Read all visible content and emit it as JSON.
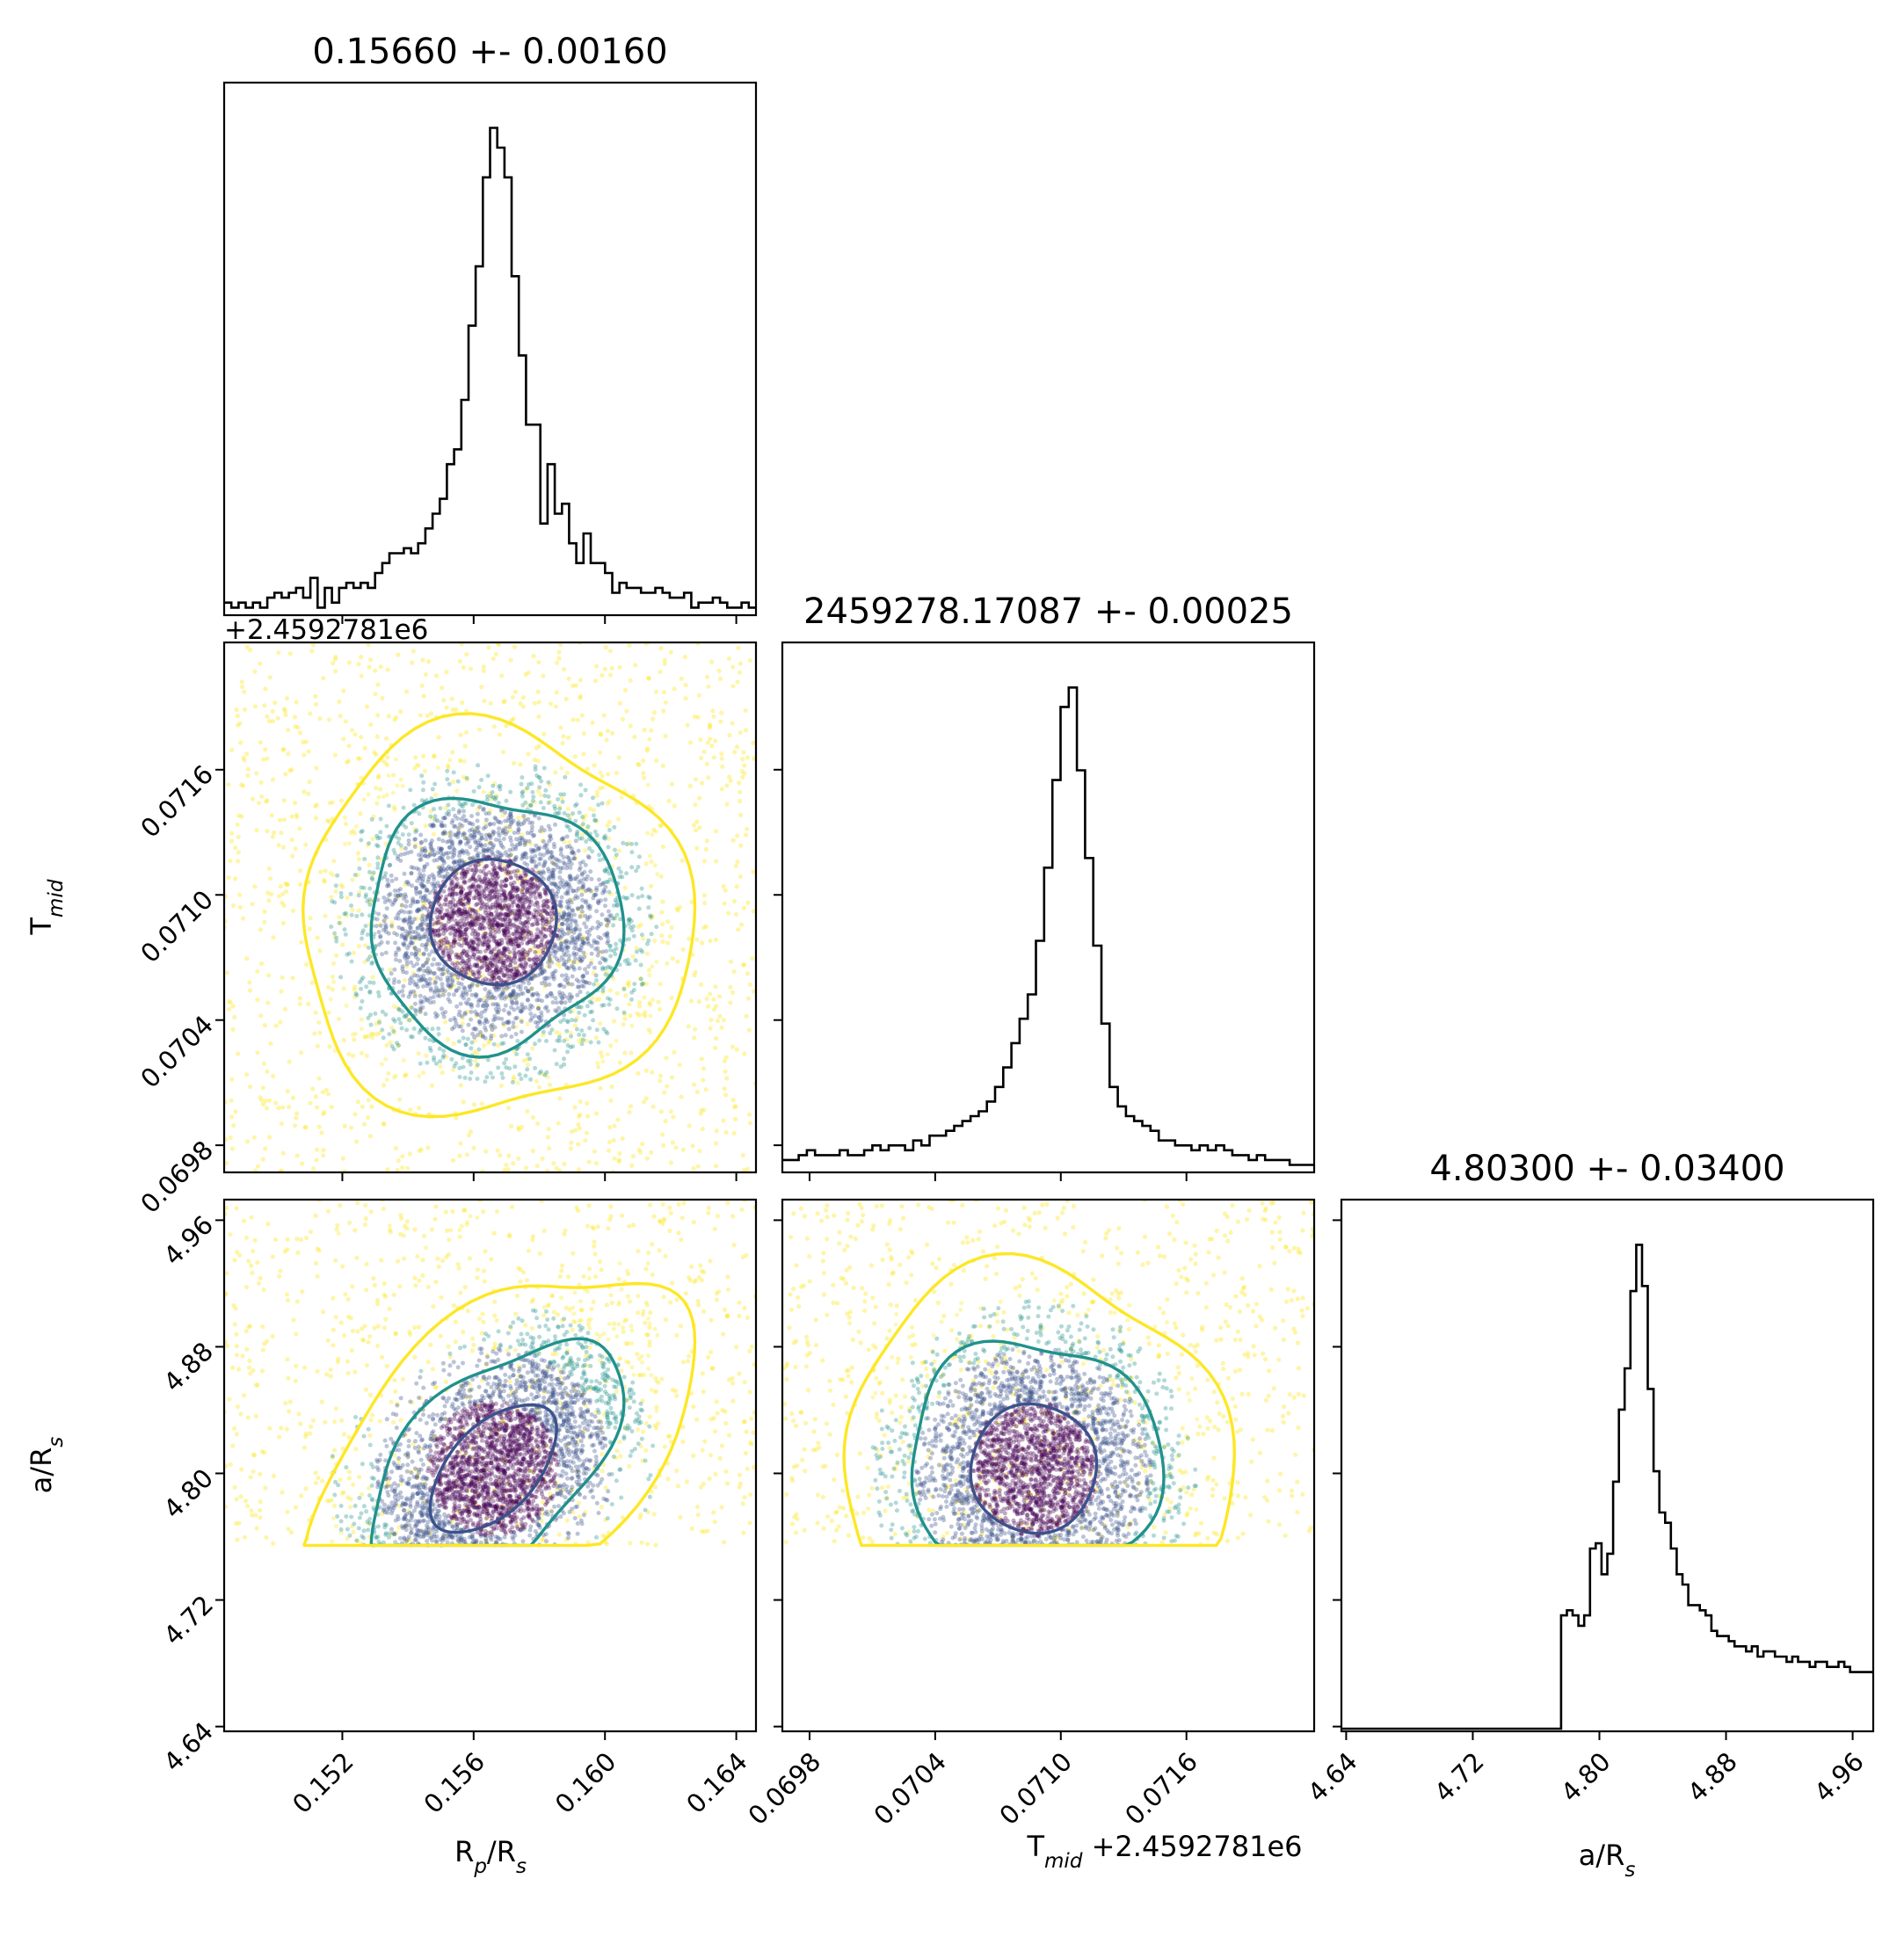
{
  "chart_data": {
    "type": "corner",
    "colors": {
      "frame": "#000000",
      "points_low": "#440154",
      "points_mid": "#21918c",
      "points_high": "#fde725",
      "contour_inner": "#3b528b",
      "contour_mid": "#21918c",
      "contour_outer": "#fde725"
    },
    "parameters": [
      {
        "key": "rp",
        "label_main": "R",
        "label_sub": "p",
        "label_tail": "/R",
        "label_sub2": "s",
        "title": "0.15660 +- 0.00160",
        "mean": 0.1566,
        "std": 0.0016,
        "range": [
          0.1484,
          0.1646
        ],
        "ticks": [
          "0.152",
          "0.156",
          "0.160",
          "0.164"
        ],
        "tick_values": [
          0.152,
          0.156,
          0.16,
          0.164
        ],
        "offset_text": "+2.4592781e6"
      },
      {
        "key": "tmid",
        "label_main": "T",
        "label_sub": "mid",
        "label_tail": "",
        "label_sub2": "",
        "title": "2459278.17087 +- 0.00025",
        "mean": 0.07087,
        "std": 0.00025,
        "range": [
          0.06967,
          0.07221
        ],
        "ticks": [
          "0.0698",
          "0.0704",
          "0.0710",
          "0.0716"
        ],
        "tick_values": [
          0.0698,
          0.0704,
          0.071,
          0.0716
        ],
        "offset_text": "+2.4592781e6"
      },
      {
        "key": "ars",
        "label_main": "a/R",
        "label_sub": "s",
        "label_tail": "",
        "label_sub2": "",
        "title": "4.80300 +- 0.03400",
        "mean": 4.803,
        "std": 0.034,
        "range": [
          4.637,
          4.973
        ],
        "ticks": [
          "4.64",
          "4.72",
          "4.80",
          "4.88",
          "4.96"
        ],
        "tick_values": [
          4.64,
          4.72,
          4.8,
          4.88,
          4.96
        ],
        "offset_text": ""
      }
    ],
    "histograms": {
      "rp": {
        "bins": [
          0.1484,
          0.1646
        ],
        "lower_cutoff": null,
        "counts": [
          2,
          1,
          2,
          1,
          2,
          1,
          3,
          4,
          3,
          4,
          5,
          3,
          7,
          1,
          5,
          2,
          5,
          6,
          5,
          6,
          5,
          8,
          10,
          12,
          12,
          13,
          12,
          14,
          17,
          20,
          23,
          30,
          33,
          43,
          58,
          70,
          88,
          98,
          94,
          88,
          68,
          52,
          38,
          38,
          18,
          30,
          20,
          22,
          14,
          10,
          16,
          10,
          10,
          8,
          4,
          6,
          5,
          5,
          4,
          4,
          5,
          4,
          3,
          3,
          4,
          1,
          2,
          2,
          3,
          2,
          1,
          1,
          2,
          1
        ]
      },
      "tmid": {
        "bins": [
          0.06967,
          0.07221
        ],
        "lower_cutoff": null,
        "counts": [
          2,
          2,
          3,
          4,
          3,
          3,
          3,
          4,
          3,
          3,
          4,
          5,
          4,
          5,
          5,
          4,
          6,
          5,
          7,
          7,
          8,
          9,
          10,
          11,
          12,
          14,
          17,
          21,
          26,
          31,
          36,
          47,
          62,
          80,
          95,
          99,
          82,
          64,
          46,
          30,
          17,
          13,
          11,
          10,
          9,
          8,
          6,
          6,
          5,
          5,
          4,
          5,
          4,
          5,
          4,
          3,
          3,
          2,
          3,
          2,
          2,
          2,
          1,
          1,
          1
        ]
      },
      "ars": {
        "bins": [
          4.637,
          4.973
        ],
        "lower_cutoff": 4.7545,
        "counts": [
          0,
          0,
          0,
          0,
          0,
          0,
          0,
          0,
          0,
          0,
          0,
          0,
          0,
          0,
          0,
          0,
          0,
          0,
          0,
          0,
          0,
          0,
          0,
          0,
          0,
          0,
          0,
          0,
          0,
          0,
          0,
          0,
          0,
          0,
          0,
          0,
          0,
          0,
          22,
          23,
          22,
          20,
          22,
          35,
          36,
          30,
          34,
          48,
          62,
          70,
          85,
          94,
          86,
          66,
          50,
          42,
          40,
          35,
          30,
          28,
          24,
          24,
          23,
          22,
          19,
          18,
          18,
          17,
          16,
          16,
          15,
          16,
          14,
          15,
          15,
          14,
          14,
          13,
          14,
          13,
          13,
          12,
          13,
          13,
          12,
          12,
          13,
          12,
          11,
          11,
          11,
          11
        ]
      }
    },
    "scatter_2d": [
      {
        "x": "rp",
        "y": "tmid",
        "contour_levels": [
          "inner",
          "mid",
          "outer"
        ]
      },
      {
        "x": "rp",
        "y": "ars",
        "correlation": 0.55,
        "lower_cutoff": 4.7545,
        "contour_levels": [
          "inner",
          "mid",
          "outer"
        ]
      },
      {
        "x": "tmid",
        "y": "ars",
        "lower_cutoff": 4.7545,
        "contour_levels": [
          "inner",
          "mid",
          "outer"
        ]
      }
    ],
    "bottom_labels": {
      "rp": "R_p/R_s",
      "tmid_main": "T",
      "tmid_sub": "mid",
      "tmid_offset": "+2.4592781e6",
      "ars": "a/R_s"
    }
  }
}
